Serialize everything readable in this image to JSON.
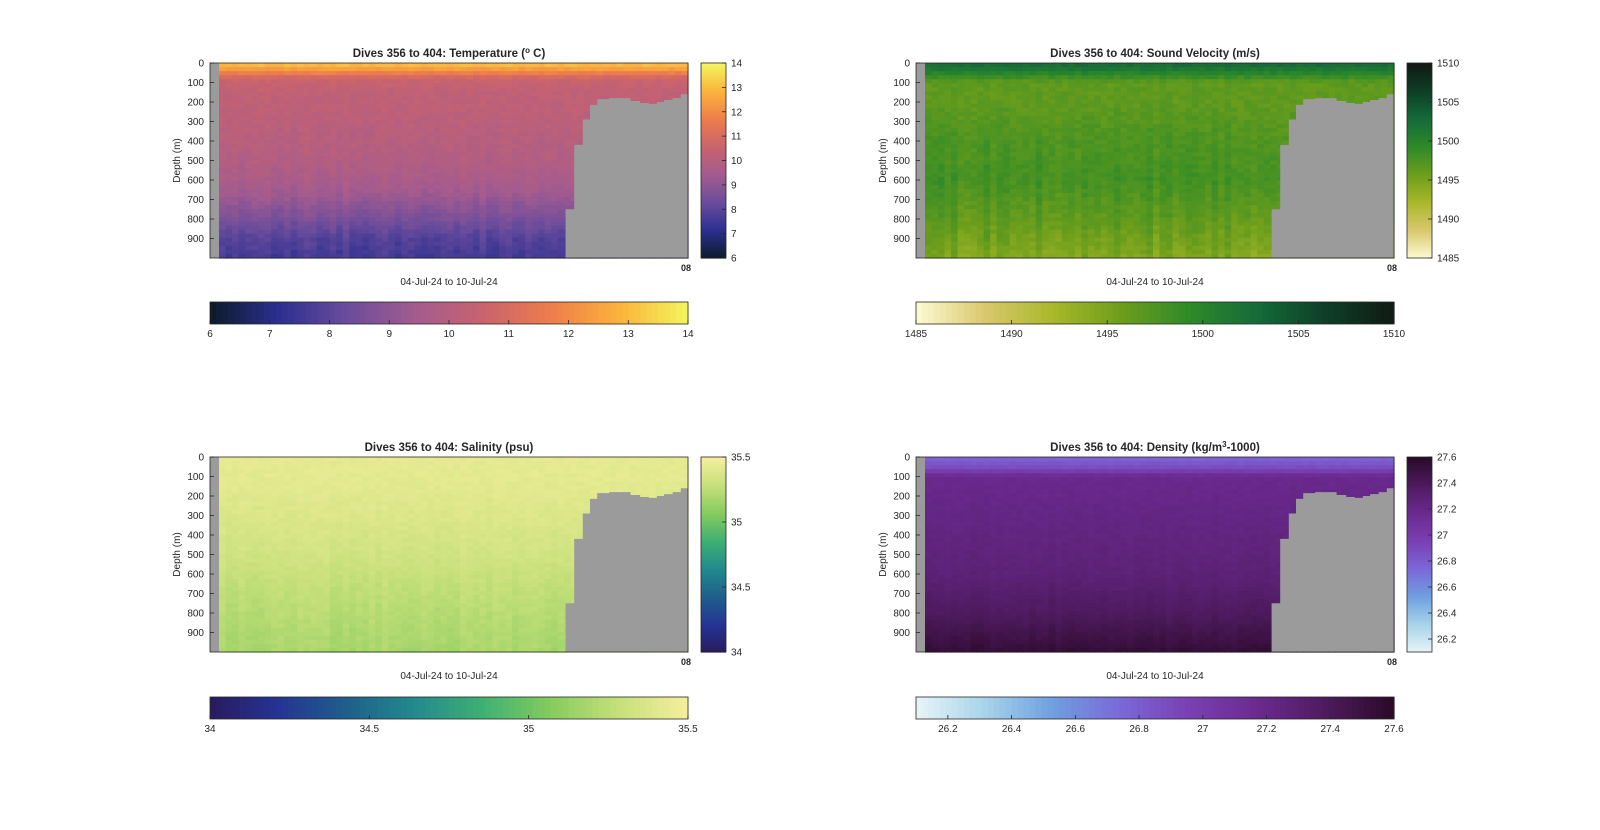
{
  "figure": {
    "background": "#ffffff",
    "axis_color": "#262626",
    "seabed_color": "#9b9b9b"
  },
  "chart_data": [
    {
      "type": "heatmap",
      "title": "Dives 356 to 404: Temperature (° C)",
      "title_parts": [
        "Dives 356 to 404: Temperature (",
        "o",
        " C)"
      ],
      "ylabel": "Depth (m)",
      "xlabel": "04-Jul-24 to 10-Jul-24",
      "ylim": [
        0,
        1000
      ],
      "yticks": [
        0,
        100,
        200,
        300,
        400,
        500,
        600,
        700,
        800,
        900
      ],
      "xtick_label": "08",
      "clim": [
        6,
        14
      ],
      "colorbar_right_ticks": [
        "6",
        "7",
        "8",
        "9",
        "10",
        "11",
        "12",
        "13",
        "14"
      ],
      "colorbar_bottom_ticks": [
        "6",
        "7",
        "8",
        "9",
        "10",
        "11",
        "12",
        "13",
        "14"
      ],
      "colormap": [
        "#0d1b2a",
        "#2b2f8f",
        "#6a4c9c",
        "#a35b8f",
        "#c9636e",
        "#ee7d4b",
        "#fbb33b",
        "#f4f65d"
      ],
      "profile": {
        "depths": [
          0,
          40,
          80,
          150,
          300,
          500,
          650,
          800,
          900,
          1000
        ],
        "values": [
          13.2,
          12.2,
          10.6,
          10.3,
          10.15,
          9.9,
          9.5,
          8.6,
          7.9,
          7.6
        ]
      },
      "variation": 0.15,
      "column_variation": 0.2
    },
    {
      "type": "heatmap",
      "title": "Dives 356 to 404: Sound Velocity (m/s)",
      "ylabel": "Depth (m)",
      "xlabel": "04-Jul-24 to 10-Jul-24",
      "ylim": [
        0,
        1000
      ],
      "yticks": [
        0,
        100,
        200,
        300,
        400,
        500,
        600,
        700,
        800,
        900
      ],
      "xtick_label": "08",
      "clim": [
        1485,
        1510
      ],
      "colorbar_right_ticks": [
        "1485",
        "1490",
        "1495",
        "1500",
        "1505",
        "1510"
      ],
      "colorbar_bottom_ticks": [
        "1485",
        "1490",
        "1495",
        "1500",
        "1505",
        "1510"
      ],
      "colormap": [
        "#fdfbd3",
        "#d9c86e",
        "#a9b82a",
        "#6d9e1c",
        "#2e8a28",
        "#146b3a",
        "#0e3f26",
        "#101a14"
      ],
      "profile": {
        "depths": [
          0,
          40,
          100,
          200,
          400,
          600,
          800,
          1000
        ],
        "values": [
          1503,
          1501,
          1496.5,
          1496.5,
          1497.5,
          1498,
          1496.5,
          1494.5
        ]
      },
      "variation": 0.6,
      "column_variation": 1.0
    },
    {
      "type": "heatmap",
      "title": "Dives 356 to 404: Salinity (psu)",
      "ylabel": "Depth (m)",
      "xlabel": "04-Jul-24 to 10-Jul-24",
      "ylim": [
        0,
        1000
      ],
      "yticks": [
        0,
        100,
        200,
        300,
        400,
        500,
        600,
        700,
        800,
        900
      ],
      "xtick_label": "08",
      "clim": [
        34,
        35.5
      ],
      "colorbar_right_ticks": [
        "34",
        "34.5",
        "35",
        "35.5"
      ],
      "colorbar_bottom_ticks": [
        "34",
        "34.5",
        "35",
        "35.5"
      ],
      "colormap": [
        "#2a1a5e",
        "#253494",
        "#1f5f8b",
        "#228a8d",
        "#3fb073",
        "#86cc5d",
        "#c7e07a",
        "#f6ef9e"
      ],
      "profile": {
        "depths": [
          0,
          100,
          300,
          500,
          700,
          850,
          1000
        ],
        "values": [
          35.42,
          35.42,
          35.38,
          35.33,
          35.26,
          35.22,
          35.18
        ]
      },
      "variation": 0.02,
      "column_variation": 0.03
    },
    {
      "type": "heatmap",
      "title": "Dives 356 to 404: Density (kg/m³-1000)",
      "title_parts": [
        "Dives 356 to 404: Density (kg/m",
        "3",
        "-1000)"
      ],
      "ylabel": "Depth (m)",
      "xlabel": "04-Jul-24 to 10-Jul-24",
      "ylim": [
        0,
        1000
      ],
      "yticks": [
        0,
        100,
        200,
        300,
        400,
        500,
        600,
        700,
        800,
        900
      ],
      "xtick_label": "08",
      "clim": [
        26.1,
        27.6
      ],
      "colorbar_right_ticks": [
        "26.2",
        "26.4",
        "26.6",
        "26.8",
        "27",
        "27.2",
        "27.4",
        "27.6"
      ],
      "colorbar_bottom_ticks": [
        "26.2",
        "26.4",
        "26.6",
        "26.8",
        "27",
        "27.2",
        "27.4",
        "27.6"
      ],
      "colormap": [
        "#e8f4f8",
        "#a8d4ea",
        "#6f9fe0",
        "#7b68d8",
        "#7a3fb2",
        "#6a2a8f",
        "#4e1a5e",
        "#2a0a28"
      ],
      "profile": {
        "depths": [
          0,
          60,
          100,
          300,
          600,
          800,
          950,
          1000
        ],
        "values": [
          26.75,
          26.9,
          27.18,
          27.22,
          27.28,
          27.38,
          27.5,
          27.55
        ]
      },
      "variation": 0.015,
      "column_variation": 0.02
    }
  ]
}
